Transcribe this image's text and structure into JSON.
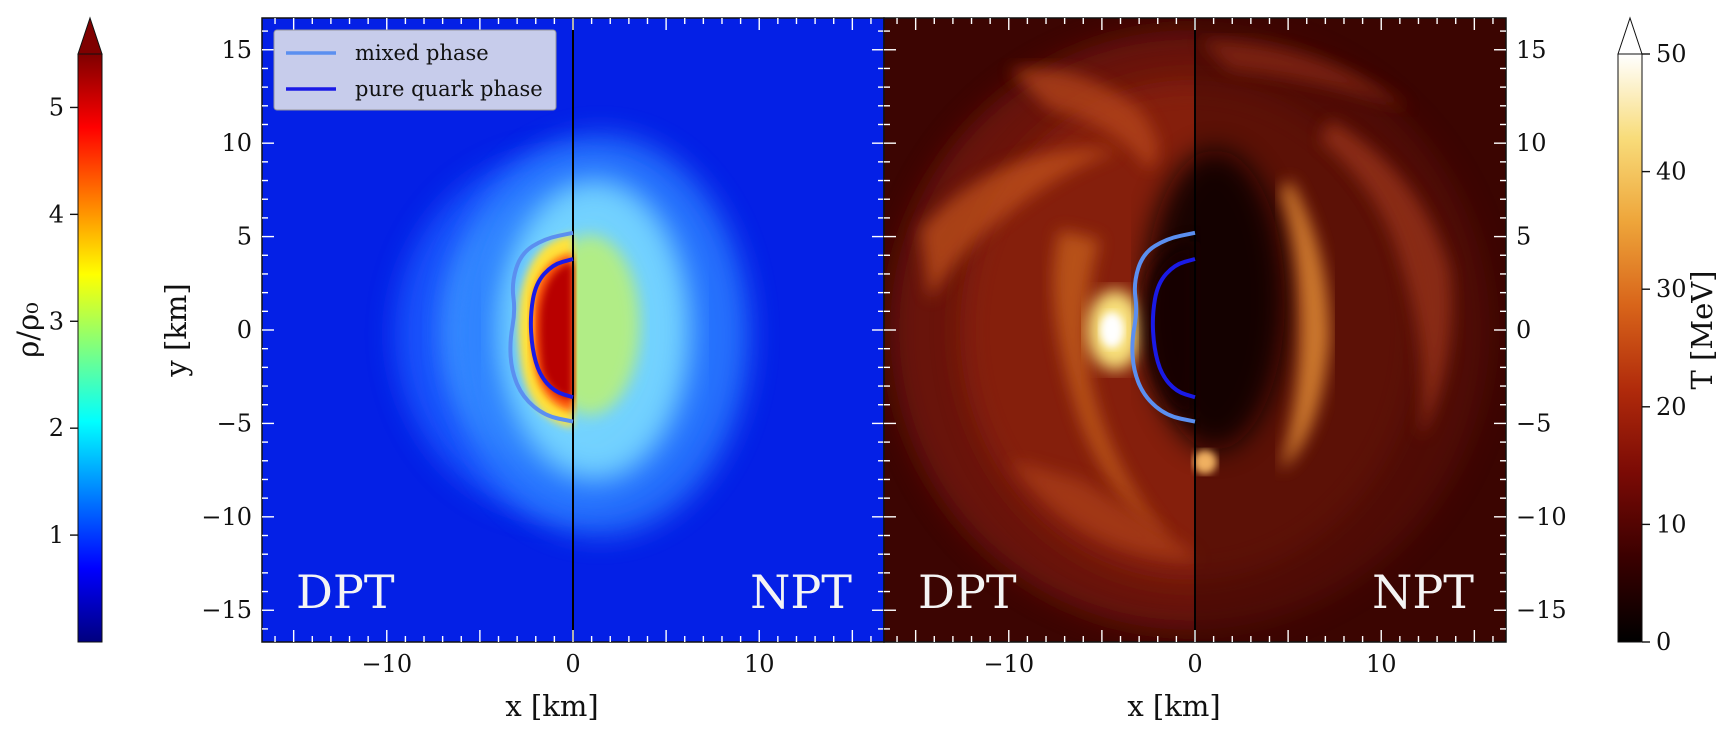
{
  "chart_data": [
    {
      "type": "heatmap",
      "quantity": "density",
      "colormap": "jet",
      "xlabel": "x [km]",
      "ylabel": "y [km]",
      "xlim": [
        -16.7,
        16.7
      ],
      "ylim": [
        -16.7,
        16.7
      ],
      "x_ticks": [
        -10,
        0,
        10
      ],
      "y_ticks": [
        15,
        10,
        5,
        0,
        -5,
        -10,
        -15
      ],
      "x_tick_labels": [
        "−10",
        "0",
        "10"
      ],
      "y_tick_labels": [
        "15",
        "10",
        "5",
        "0",
        "−5",
        "−10",
        "−15"
      ],
      "halves": [
        {
          "label": "DPT",
          "side": "left",
          "peak_rho_over_rho0": 5.2
        },
        {
          "label": "NPT",
          "side": "right",
          "peak_rho_over_rho0": 2.8
        }
      ],
      "contours": [
        {
          "name": "mixed phase",
          "color": "#5b8ff0",
          "points": [
            [
              0,
              5.2
            ],
            [
              -1.5,
              4.9
            ],
            [
              -2.8,
              4.1
            ],
            [
              -3.3,
              2.5
            ],
            [
              -3.1,
              1.0
            ],
            [
              -3.4,
              -0.6
            ],
            [
              -3.3,
              -2.2
            ],
            [
              -2.7,
              -3.6
            ],
            [
              -1.5,
              -4.6
            ],
            [
              0,
              -4.9
            ]
          ]
        },
        {
          "name": "pure quark phase",
          "color": "#1a1ae6",
          "points": [
            [
              0,
              3.8
            ],
            [
              -1.1,
              3.5
            ],
            [
              -2.0,
              2.5
            ],
            [
              -2.3,
              0.8
            ],
            [
              -2.2,
              -1.0
            ],
            [
              -1.8,
              -2.4
            ],
            [
              -1.0,
              -3.3
            ],
            [
              0,
              -3.6
            ]
          ]
        }
      ],
      "legend": {
        "position": "top-left",
        "entries": [
          {
            "label": "mixed phase",
            "color": "#5b8ff0"
          },
          {
            "label": "pure quark phase",
            "color": "#1a1ae6"
          }
        ]
      },
      "colorbar": {
        "label": "ρ/ρ₀",
        "ticks": [
          1,
          2,
          3,
          4,
          5
        ],
        "range": [
          0,
          5.5
        ],
        "extend": "max",
        "side": "left"
      }
    },
    {
      "type": "heatmap",
      "quantity": "temperature",
      "colormap": "afmhot",
      "xlabel": "x [km]",
      "xlim": [
        -16.7,
        16.7
      ],
      "ylim": [
        -16.7,
        16.7
      ],
      "x_ticks": [
        -10,
        0,
        10
      ],
      "y_ticks": [
        15,
        10,
        5,
        0,
        -5,
        -10,
        -15
      ],
      "x_tick_labels": [
        "−10",
        "0",
        "10"
      ],
      "y_tick_labels": [
        "15",
        "10",
        "5",
        "0",
        "−5",
        "−10",
        "−15"
      ],
      "halves": [
        {
          "label": "DPT",
          "side": "left"
        },
        {
          "label": "NPT",
          "side": "right"
        }
      ],
      "contours": [
        {
          "name": "mixed phase",
          "color": "#5b8ff0",
          "points": [
            [
              0,
              5.2
            ],
            [
              -1.5,
              4.9
            ],
            [
              -2.8,
              4.1
            ],
            [
              -3.3,
              2.5
            ],
            [
              -3.1,
              1.0
            ],
            [
              -3.4,
              -0.6
            ],
            [
              -3.3,
              -2.2
            ],
            [
              -2.7,
              -3.6
            ],
            [
              -1.5,
              -4.6
            ],
            [
              0,
              -4.9
            ]
          ]
        },
        {
          "name": "pure quark phase",
          "color": "#1a1ae6",
          "points": [
            [
              0,
              3.8
            ],
            [
              -1.1,
              3.5
            ],
            [
              -2.0,
              2.5
            ],
            [
              -2.3,
              0.8
            ],
            [
              -2.2,
              -1.0
            ],
            [
              -1.8,
              -2.4
            ],
            [
              -1.0,
              -3.3
            ],
            [
              0,
              -3.6
            ]
          ]
        }
      ],
      "colorbar": {
        "label": "T [MeV]",
        "ticks": [
          0,
          10,
          20,
          30,
          40,
          50
        ],
        "range": [
          0,
          50
        ],
        "extend": "max",
        "side": "right"
      }
    }
  ],
  "colors": {
    "density_stops": [
      "#00007f",
      "#0000ff",
      "#007fff",
      "#00ffff",
      "#7fff7f",
      "#ffff00",
      "#ff7f00",
      "#ff0000",
      "#7f0000"
    ],
    "temperature_stops": [
      "#000000",
      "#3a0000",
      "#7a0a05",
      "#b02a0b",
      "#d8641a",
      "#eea53a",
      "#f8dc7a",
      "#ffffff"
    ],
    "panel_text": "#f2f2f2",
    "axis": "#111111"
  }
}
